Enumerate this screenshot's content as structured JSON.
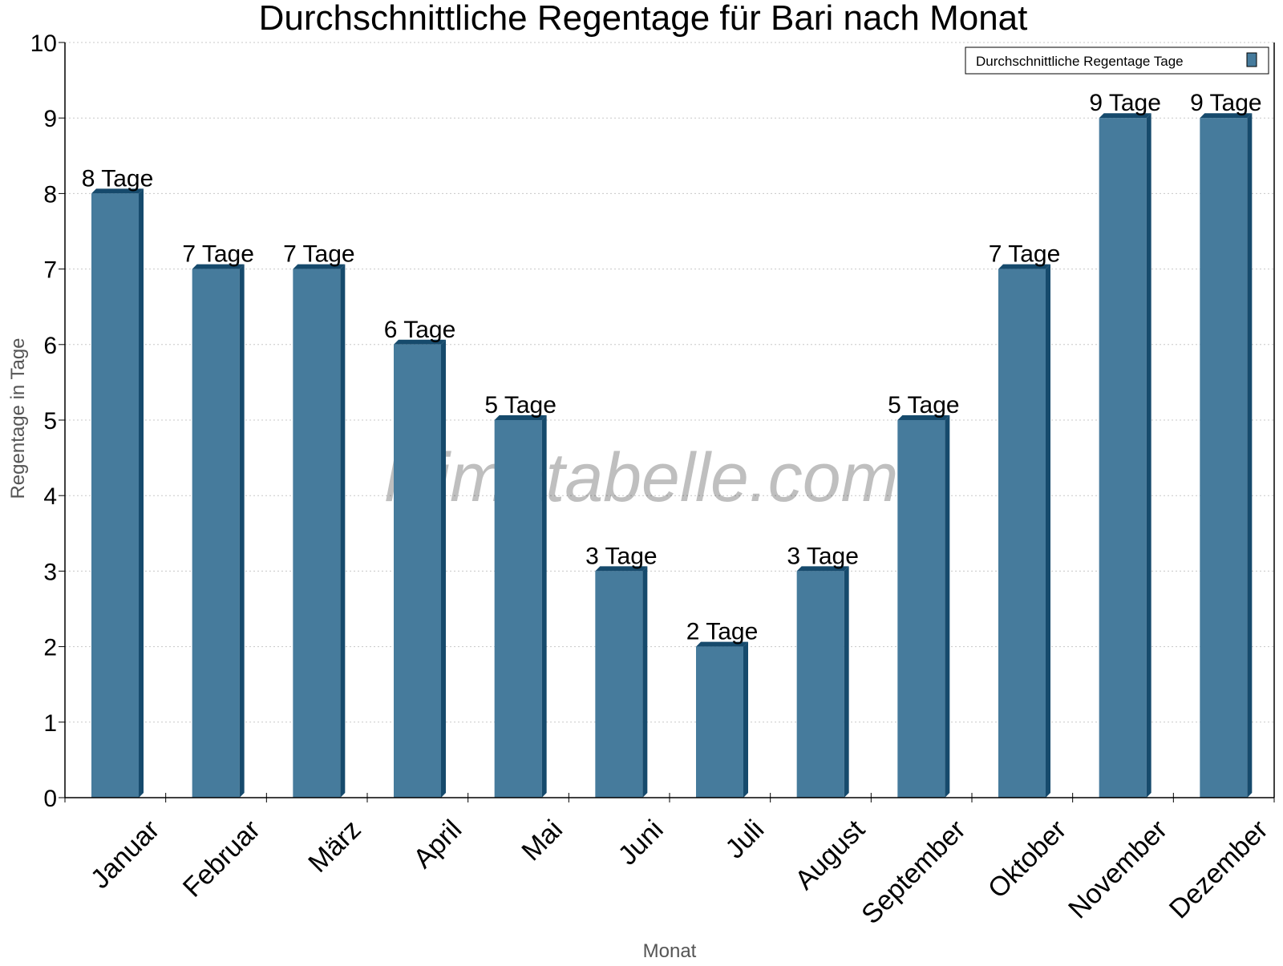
{
  "chart_data": {
    "type": "bar",
    "title": "Durchschnittliche Regentage für Bari nach Monat",
    "xlabel": "Monat",
    "ylabel": "Regentage in Tage",
    "ylim": [
      0,
      10
    ],
    "yticks": [
      0,
      1,
      2,
      3,
      4,
      5,
      6,
      7,
      8,
      9,
      10
    ],
    "grid": true,
    "legend": {
      "position": "top-right",
      "entries": [
        "Durchschnittliche Regentage Tage"
      ]
    },
    "categories": [
      "Januar",
      "Februar",
      "März",
      "April",
      "Mai",
      "Juni",
      "Juli",
      "August",
      "September",
      "Oktober",
      "November",
      "Dezember"
    ],
    "series": [
      {
        "name": "Durchschnittliche Regentage Tage",
        "values": [
          8,
          7,
          7,
          6,
          5,
          3,
          2,
          3,
          5,
          7,
          9,
          9
        ]
      }
    ],
    "data_labels": [
      "8 Tage",
      "7 Tage",
      "7 Tage",
      "6 Tage",
      "5 Tage",
      "3 Tage",
      "2 Tage",
      "3 Tage",
      "5 Tage",
      "7 Tage",
      "9 Tage",
      "9 Tage"
    ],
    "watermark": "klimatabelle.com",
    "colors": {
      "bar": "#467b9c",
      "bar_side": "#164a6c",
      "grid": "#c8c8c8"
    }
  }
}
